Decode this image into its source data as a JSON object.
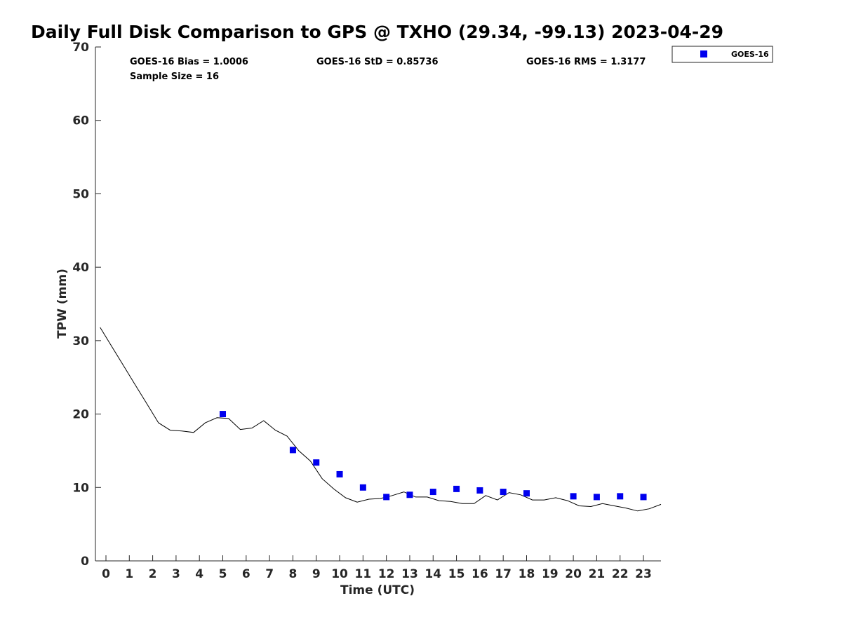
{
  "chart_data": {
    "type": "scatter",
    "title": "Daily Full Disk Comparison to GPS @ TXHO (29.34, -99.13) 2023-04-29",
    "xlabel": "Time (UTC)",
    "ylabel": "TPW (mm)",
    "xlim": [
      -0.45,
      23.75
    ],
    "ylim": [
      0,
      70
    ],
    "x_ticks": [
      0,
      1,
      2,
      3,
      4,
      5,
      6,
      7,
      8,
      9,
      10,
      11,
      12,
      13,
      14,
      15,
      16,
      17,
      18,
      19,
      20,
      21,
      22,
      23
    ],
    "y_ticks": [
      0,
      10,
      20,
      30,
      40,
      50,
      60,
      70
    ],
    "grid": false,
    "legend_position": "top-right, outside plot",
    "stats": {
      "bias": "GOES-16 Bias = 1.0006",
      "std": "GOES-16 StD = 0.85736",
      "rms": "GOES-16 RMS = 1.3177",
      "sample": "Sample Size = 16"
    },
    "series": [
      {
        "name": "GOES-16",
        "kind": "scatter",
        "marker": "square",
        "color": "#0000ee",
        "x": [
          5,
          8,
          9,
          10,
          11,
          12,
          13,
          14,
          15,
          16,
          17,
          18,
          20,
          21,
          22,
          23
        ],
        "y": [
          20.0,
          15.1,
          13.4,
          11.8,
          10.0,
          8.7,
          9.0,
          9.4,
          9.8,
          9.6,
          9.4,
          9.2,
          8.8,
          8.7,
          8.8,
          8.7
        ]
      },
      {
        "kind": "line",
        "color": "#000000",
        "x": [
          -0.25,
          0.25,
          0.75,
          1.25,
          1.75,
          2.25,
          2.75,
          3.25,
          3.75,
          4.25,
          4.75,
          5.25,
          5.75,
          6.25,
          6.75,
          7.25,
          7.75,
          8.25,
          8.75,
          9.25,
          9.75,
          10.25,
          10.75,
          11.25,
          11.75,
          12.25,
          12.75,
          13.25,
          13.75,
          14.25,
          14.75,
          15.25,
          15.75,
          16.25,
          16.75,
          17.25,
          17.75,
          18.25,
          18.75,
          19.25,
          19.75,
          20.25,
          20.75,
          21.25,
          21.75,
          22.25,
          22.75,
          23.25,
          23.75
        ],
        "y": [
          31.8,
          29.2,
          26.6,
          24.0,
          21.4,
          18.8,
          17.8,
          17.7,
          17.5,
          18.8,
          19.5,
          19.4,
          17.9,
          18.1,
          19.1,
          17.8,
          17.0,
          15.0,
          13.6,
          11.2,
          9.8,
          8.6,
          8.0,
          8.4,
          8.5,
          8.9,
          9.4,
          8.7,
          8.7,
          8.2,
          8.1,
          7.8,
          7.8,
          8.9,
          8.3,
          9.3,
          9.0,
          8.3,
          8.3,
          8.6,
          8.2,
          7.5,
          7.4,
          7.8,
          7.5,
          7.2,
          6.8,
          7.1,
          7.7
        ]
      }
    ]
  }
}
